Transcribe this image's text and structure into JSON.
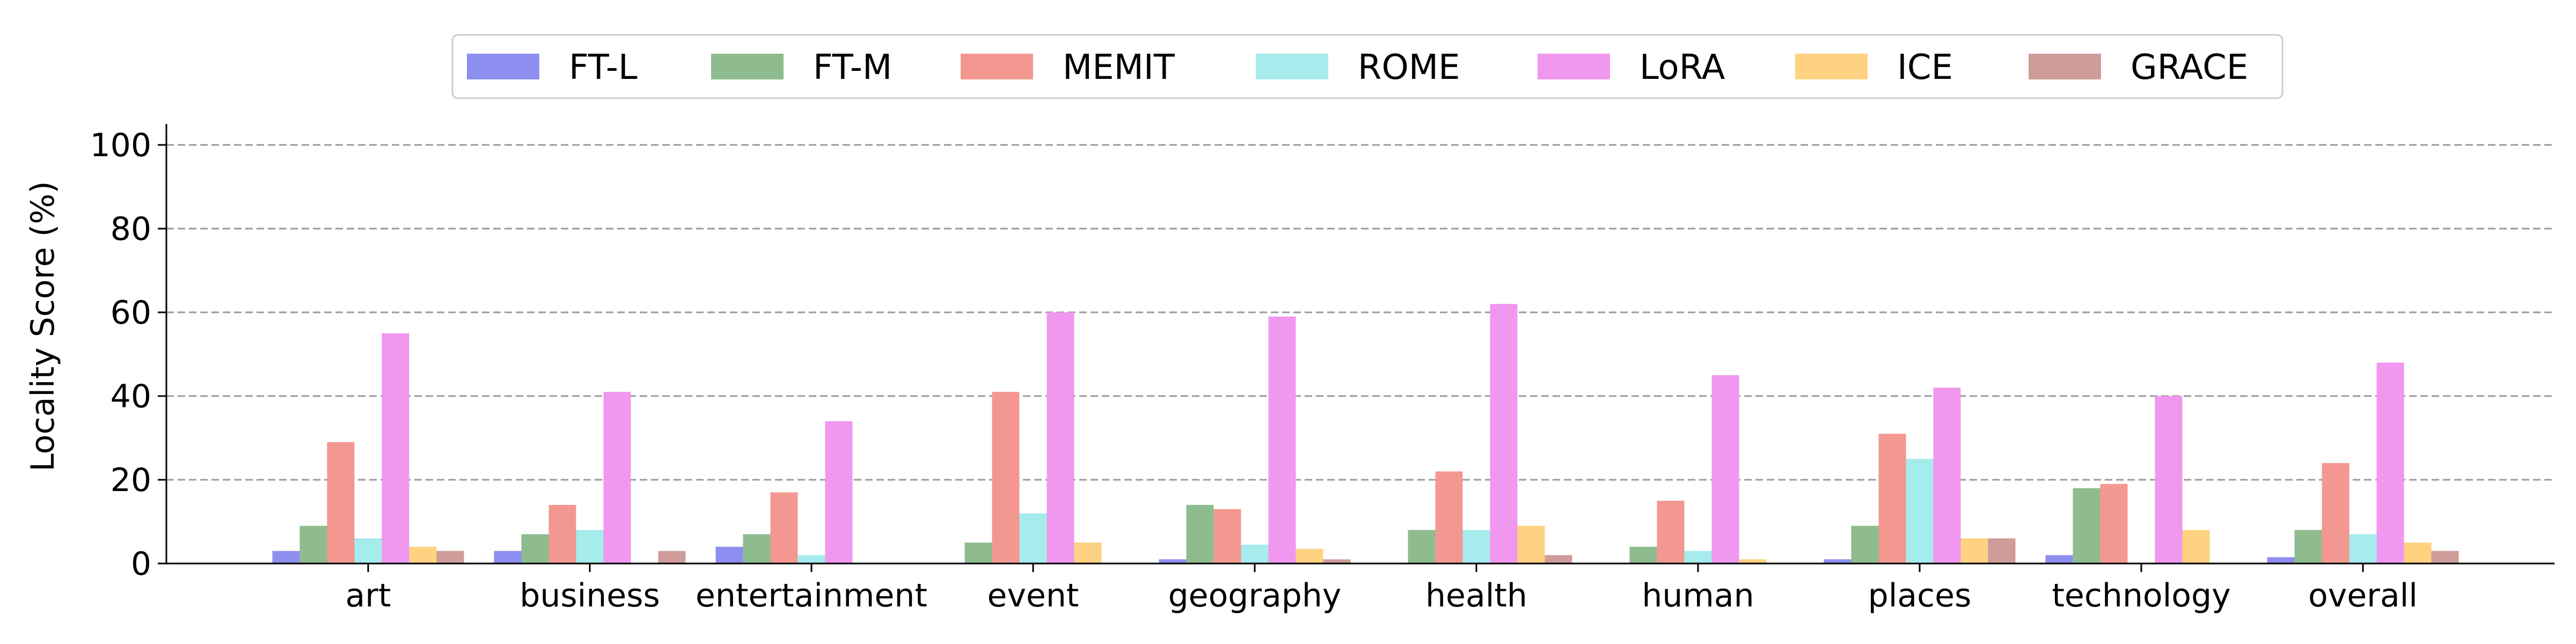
{
  "chart_data": {
    "type": "bar",
    "title": "",
    "xlabel": "",
    "ylabel": "Locality Score (%)",
    "ylim": [
      0,
      105
    ],
    "yticks": [
      "0",
      "20",
      "40",
      "60",
      "80",
      "100"
    ],
    "grid": "horizontal-dashed",
    "legend_position": "top-center",
    "categories": [
      "art",
      "business",
      "entertainment",
      "event",
      "geography",
      "health",
      "human",
      "places",
      "technology",
      "overall"
    ],
    "series": [
      {
        "name": "FT-L",
        "color": "#8d8ff0",
        "values": [
          3,
          3,
          4,
          0,
          1,
          0,
          0,
          1,
          2,
          1.5
        ]
      },
      {
        "name": "FT-M",
        "color": "#8fbc8f",
        "values": [
          9,
          7,
          7,
          5,
          14,
          8,
          4,
          9,
          18,
          8
        ]
      },
      {
        "name": "MEMIT",
        "color": "#f39891",
        "values": [
          29,
          14,
          17,
          41,
          13,
          22,
          15,
          31,
          19,
          24
        ]
      },
      {
        "name": "ROME",
        "color": "#a6ecec",
        "values": [
          6,
          8,
          2,
          12,
          4.5,
          8,
          3,
          25,
          0,
          7
        ]
      },
      {
        "name": "LoRA",
        "color": "#f097ef",
        "values": [
          55,
          41,
          34,
          60,
          59,
          62,
          45,
          42,
          40,
          48
        ]
      },
      {
        "name": "ICE",
        "color": "#fed281",
        "values": [
          4,
          0,
          0,
          5,
          3.5,
          9,
          1,
          6,
          8,
          5
        ]
      },
      {
        "name": "GRACE",
        "color": "#cf9c99",
        "values": [
          3,
          3,
          0,
          0,
          1,
          2,
          0,
          6,
          0,
          3
        ]
      }
    ]
  }
}
